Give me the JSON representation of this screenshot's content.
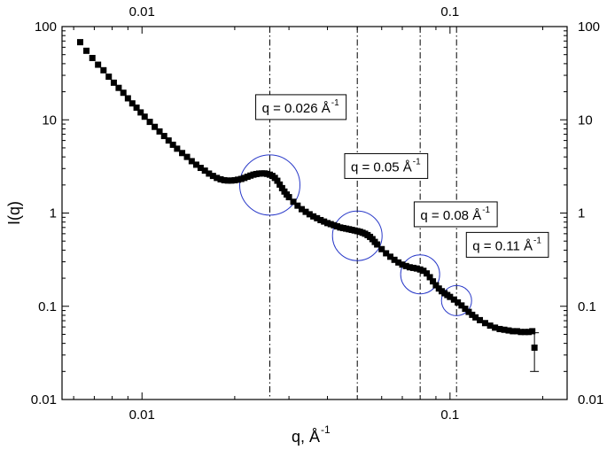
{
  "chart_data": {
    "type": "scatter",
    "title": "",
    "xlabel": "q, Å",
    "xlabel_superscript": "-1",
    "ylabel": "I(q)",
    "x_scale": "log",
    "y_scale": "log",
    "xlim": [
      0.0055,
      0.24
    ],
    "ylim": [
      0.01,
      100
    ],
    "grid": false,
    "legend": "none",
    "marker": "square",
    "marker_color": "#000000",
    "circle_color": "#2b3bc9",
    "x_ticks_bottom": [
      {
        "value": 0.01,
        "label": "0.01"
      },
      {
        "value": 0.1,
        "label": "0.1"
      }
    ],
    "x_ticks_top": [
      {
        "value": 0.01,
        "label": "0.01"
      },
      {
        "value": 0.1,
        "label": "0.1"
      }
    ],
    "y_ticks_left": [
      {
        "value": 0.01,
        "label": "0.01"
      },
      {
        "value": 0.1,
        "label": "0.1"
      },
      {
        "value": 1,
        "label": "1"
      },
      {
        "value": 10,
        "label": "10"
      },
      {
        "value": 100,
        "label": "100"
      }
    ],
    "y_ticks_right": [
      {
        "value": 0.01,
        "label": "0.01"
      },
      {
        "value": 0.1,
        "label": "0.1"
      },
      {
        "value": 1,
        "label": "1"
      },
      {
        "value": 10,
        "label": "10"
      },
      {
        "value": 100,
        "label": "100"
      }
    ],
    "series": [
      {
        "x": [
          0.0063,
          0.0066,
          0.0069,
          0.0072,
          0.0075,
          0.0078,
          0.0081,
          0.0084,
          0.0087,
          0.009,
          0.0093,
          0.0096,
          0.0099,
          0.0102,
          0.0106,
          0.011,
          0.0114,
          0.0118,
          0.0122,
          0.0126,
          0.013,
          0.0135,
          0.014,
          0.0145,
          0.015,
          0.0155,
          0.016,
          0.0165,
          0.017,
          0.0175,
          0.018,
          0.0185,
          0.019,
          0.0195,
          0.02,
          0.0205,
          0.021,
          0.0215,
          0.022,
          0.0225,
          0.023,
          0.0235,
          0.024,
          0.0245,
          0.025,
          0.0255,
          0.026,
          0.0265,
          0.027,
          0.0275,
          0.028,
          0.0285,
          0.029,
          0.0295,
          0.03,
          0.031,
          0.032,
          0.033,
          0.034,
          0.035,
          0.036,
          0.037,
          0.038,
          0.039,
          0.04,
          0.041,
          0.042,
          0.043,
          0.044,
          0.045,
          0.046,
          0.047,
          0.048,
          0.049,
          0.05,
          0.051,
          0.052,
          0.053,
          0.054,
          0.055,
          0.056,
          0.057,
          0.058,
          0.06,
          0.062,
          0.064,
          0.066,
          0.068,
          0.07,
          0.072,
          0.074,
          0.076,
          0.078,
          0.08,
          0.082,
          0.084,
          0.086,
          0.088,
          0.09,
          0.092,
          0.094,
          0.096,
          0.098,
          0.1,
          0.103,
          0.106,
          0.109,
          0.112,
          0.115,
          0.118,
          0.121,
          0.125,
          0.13,
          0.135,
          0.14,
          0.145,
          0.15,
          0.155,
          0.16,
          0.165,
          0.17,
          0.175,
          0.18,
          0.185,
          0.188
        ],
        "y": [
          68,
          55,
          46,
          39,
          34,
          29,
          25,
          22,
          19.5,
          17,
          15,
          13.5,
          12,
          10.8,
          9.5,
          8.4,
          7.5,
          6.7,
          6.0,
          5.4,
          4.9,
          4.4,
          4.0,
          3.6,
          3.3,
          3.05,
          2.85,
          2.65,
          2.5,
          2.38,
          2.3,
          2.25,
          2.23,
          2.23,
          2.25,
          2.28,
          2.32,
          2.38,
          2.45,
          2.52,
          2.58,
          2.62,
          2.65,
          2.66,
          2.66,
          2.63,
          2.58,
          2.5,
          2.38,
          2.22,
          2.02,
          1.85,
          1.7,
          1.58,
          1.48,
          1.32,
          1.2,
          1.1,
          1.03,
          0.97,
          0.92,
          0.88,
          0.84,
          0.81,
          0.78,
          0.76,
          0.74,
          0.72,
          0.7,
          0.69,
          0.68,
          0.67,
          0.66,
          0.65,
          0.64,
          0.63,
          0.615,
          0.6,
          0.58,
          0.555,
          0.525,
          0.49,
          0.46,
          0.41,
          0.37,
          0.34,
          0.315,
          0.295,
          0.28,
          0.27,
          0.262,
          0.258,
          0.254,
          0.248,
          0.24,
          0.225,
          0.205,
          0.185,
          0.168,
          0.155,
          0.145,
          0.138,
          0.132,
          0.126,
          0.118,
          0.11,
          0.102,
          0.094,
          0.087,
          0.081,
          0.076,
          0.071,
          0.066,
          0.062,
          0.059,
          0.057,
          0.056,
          0.055,
          0.054,
          0.054,
          0.053,
          0.053,
          0.053,
          0.054,
          0.036
        ]
      }
    ],
    "error_bar": {
      "x": 0.188,
      "y": 0.036,
      "y_low": 0.02,
      "y_high": 0.052
    },
    "annotations": [
      {
        "q": 0.026,
        "circle_center": [
          0.026,
          2.0
        ],
        "text": "q = 0.026 Å",
        "superscript": "-1",
        "label_anchor": [
          0.0234,
          12.0
        ]
      },
      {
        "q": 0.05,
        "circle_center": [
          0.05,
          0.57
        ],
        "text": "q = 0.05 Å",
        "superscript": "-1",
        "label_anchor": [
          0.0455,
          2.8
        ]
      },
      {
        "q": 0.08,
        "circle_center": [
          0.08,
          0.22
        ],
        "text": "q = 0.08 Å",
        "superscript": "-1",
        "label_anchor": [
          0.0765,
          0.85
        ]
      },
      {
        "q": 0.105,
        "circle_center": [
          0.105,
          0.115
        ],
        "text": "q = 0.11 Å",
        "superscript": "-1",
        "label_anchor": [
          0.113,
          0.4
        ]
      }
    ]
  }
}
